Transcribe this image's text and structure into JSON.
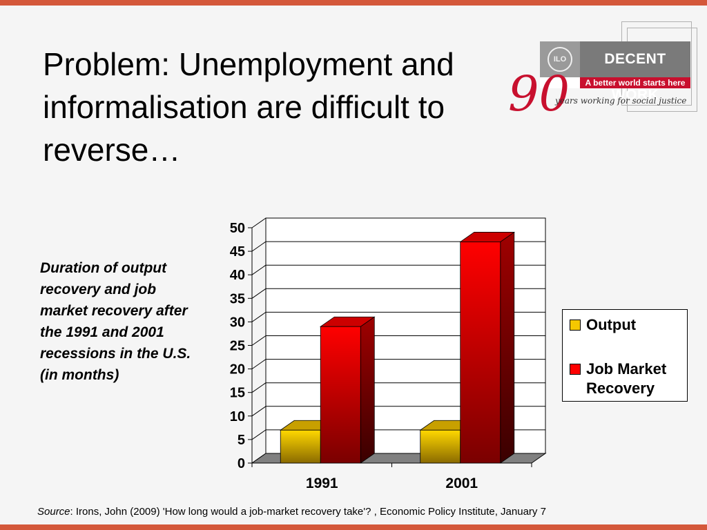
{
  "title": "Problem:  Unemployment and informalisation are difficult to reverse…",
  "side_note": "Duration of output recovery and job market recovery after the 1991 and 2001 recessions in the U.S. (in months)",
  "logo": {
    "brand": "DECENT WORK",
    "tagline": "A better world starts here",
    "ninety": "90",
    "subline": "years working for social justice",
    "emblem": "ILO"
  },
  "source": {
    "label": "Source",
    "text": ": Irons, John (2009) 'How long would a job-market recovery take'? , Economic Policy Institute, January 7"
  },
  "chart_data": {
    "type": "bar",
    "style": "3d-clustered",
    "categories": [
      "1991",
      "2001"
    ],
    "series": [
      {
        "name": "Output",
        "values": [
          7,
          7
        ],
        "color": "#f5c800"
      },
      {
        "name": "Job Market Recovery",
        "values": [
          29,
          47
        ],
        "color": "#ff0000"
      }
    ],
    "ylim": [
      0,
      50
    ],
    "yticks": [
      0,
      5,
      10,
      15,
      20,
      25,
      30,
      35,
      40,
      45,
      50
    ],
    "grid": true,
    "legend_position": "right"
  }
}
